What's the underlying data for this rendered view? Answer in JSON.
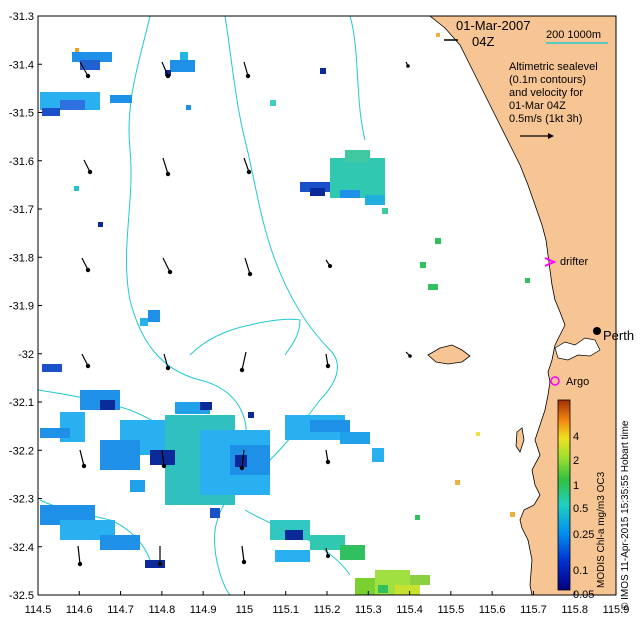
{
  "map": {
    "header": {
      "date": "01-Mar-2007",
      "hour": "04Z"
    },
    "scale_label": "200  1000m",
    "legend_lines": [
      "Altimetric sealevel",
      "(0.1m contours)",
      "and velocity for",
      "01-Mar 04Z",
      "0.5m/s (1kt 3h)"
    ],
    "x_ticks": [
      "114.5",
      "114.6",
      "114.7",
      "114.8",
      "114.9",
      "115",
      "115.1",
      "115.2",
      "115.3",
      "115.4",
      "115.5",
      "115.6",
      "115.7",
      "115.8",
      "115.9"
    ],
    "y_ticks": [
      "-31.3",
      "-31.4",
      "-31.5",
      "-31.6",
      "-31.7",
      "-31.8",
      "-31.9",
      "-32",
      "-32.1",
      "-32.2",
      "-32.3",
      "-32.4",
      "-32.5"
    ],
    "lon_range": [
      114.5,
      115.9
    ],
    "lat_range": [
      -32.5,
      -31.3
    ],
    "places": [
      {
        "name": "Perth",
        "lon": 115.86,
        "lat": -31.95
      },
      {
        "name": "drifter",
        "lon": 115.75,
        "lat": -31.81
      },
      {
        "name": "Argo",
        "lon": 115.74,
        "lat": -32.11
      }
    ],
    "colorbar": {
      "ticks": [
        "4",
        "2",
        "1",
        "0.5",
        "0.25",
        "0.1",
        "0.05"
      ],
      "label": "MODIS Chl-a mg/m3 OC3",
      "credit": "© IMOS 11-Apr-2015 15:35:55 Hobart time"
    },
    "colors": {
      "land": "#f7c594",
      "contour": "#22c8d2",
      "drifter": "#ff00ff",
      "argo": "#ff00ff"
    }
  }
}
